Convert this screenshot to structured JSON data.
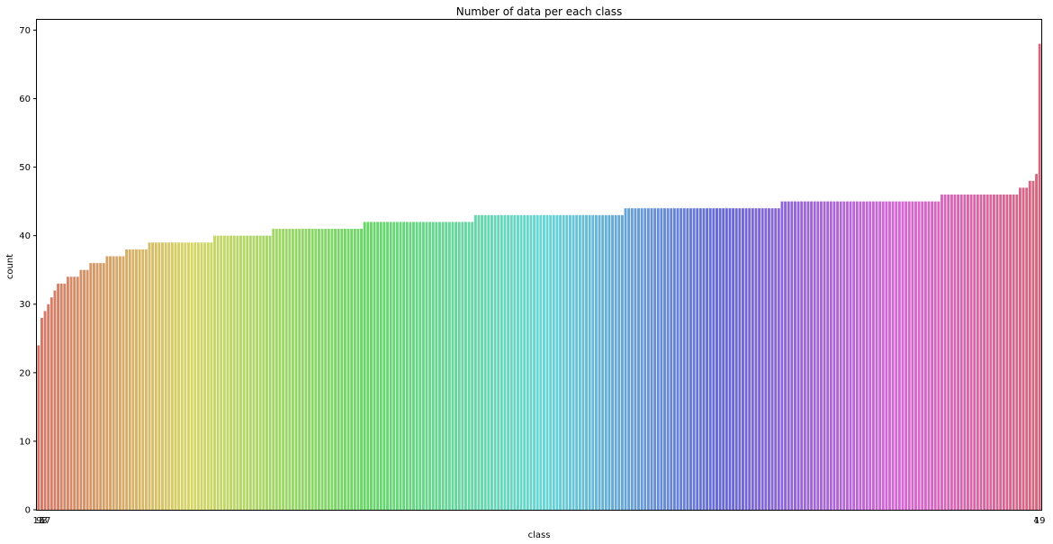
{
  "chart_data": {
    "type": "bar",
    "title": "Number of data per each class",
    "xlabel": "class",
    "ylabel": "count",
    "ylim": [
      0,
      71.5
    ],
    "yticks": [
      0,
      10,
      20,
      30,
      40,
      50,
      60,
      70
    ],
    "grid": false,
    "legend": "none",
    "tick_labels_visible": [
      "13",
      "93",
      "67",
      "4",
      "19"
    ],
    "values": [
      24,
      28,
      29,
      30,
      31,
      32,
      33,
      33,
      33,
      34,
      34,
      34,
      34,
      35,
      35,
      35,
      36,
      36,
      36,
      36,
      36,
      37,
      37,
      37,
      37,
      37,
      37,
      38,
      38,
      38,
      38,
      38,
      38,
      38,
      39,
      39,
      39,
      39,
      39,
      39,
      39,
      39,
      39,
      39,
      39,
      39,
      39,
      39,
      39,
      39,
      39,
      39,
      39,
      39,
      40,
      40,
      40,
      40,
      40,
      40,
      40,
      40,
      40,
      40,
      40,
      40,
      40,
      40,
      40,
      40,
      40,
      40,
      41,
      41,
      41,
      41,
      41,
      41,
      41,
      41,
      41,
      41,
      41,
      41,
      41,
      41,
      41,
      41,
      41,
      41,
      41,
      41,
      41,
      41,
      41,
      41,
      41,
      41,
      41,
      41,
      42,
      42,
      42,
      42,
      42,
      42,
      42,
      42,
      42,
      42,
      42,
      42,
      42,
      42,
      42,
      42,
      42,
      42,
      42,
      42,
      42,
      42,
      42,
      42,
      42,
      42,
      42,
      42,
      42,
      42,
      42,
      42,
      42,
      42,
      43,
      43,
      43,
      43,
      43,
      43,
      43,
      43,
      43,
      43,
      43,
      43,
      43,
      43,
      43,
      43,
      43,
      43,
      43,
      43,
      43,
      43,
      43,
      43,
      43,
      43,
      43,
      43,
      43,
      43,
      43,
      43,
      43,
      43,
      43,
      43,
      43,
      43,
      43,
      43,
      43,
      43,
      43,
      43,
      43,
      43,
      44,
      44,
      44,
      44,
      44,
      44,
      44,
      44,
      44,
      44,
      44,
      44,
      44,
      44,
      44,
      44,
      44,
      44,
      44,
      44,
      44,
      44,
      44,
      44,
      44,
      44,
      44,
      44,
      44,
      44,
      44,
      44,
      44,
      44,
      44,
      44,
      44,
      44,
      44,
      44,
      44,
      44,
      44,
      44,
      44,
      44,
      44,
      44,
      45,
      45,
      45,
      45,
      45,
      45,
      45,
      45,
      45,
      45,
      45,
      45,
      45,
      45,
      45,
      45,
      45,
      45,
      45,
      45,
      45,
      45,
      45,
      45,
      45,
      45,
      45,
      45,
      45,
      45,
      45,
      45,
      45,
      45,
      45,
      45,
      45,
      45,
      45,
      45,
      45,
      45,
      45,
      45,
      45,
      45,
      45,
      45,
      45,
      46,
      46,
      46,
      46,
      46,
      46,
      46,
      46,
      46,
      46,
      46,
      46,
      46,
      46,
      46,
      46,
      46,
      46,
      46,
      46,
      46,
      46,
      46,
      46,
      47,
      47,
      47,
      48,
      48,
      49,
      68
    ]
  }
}
